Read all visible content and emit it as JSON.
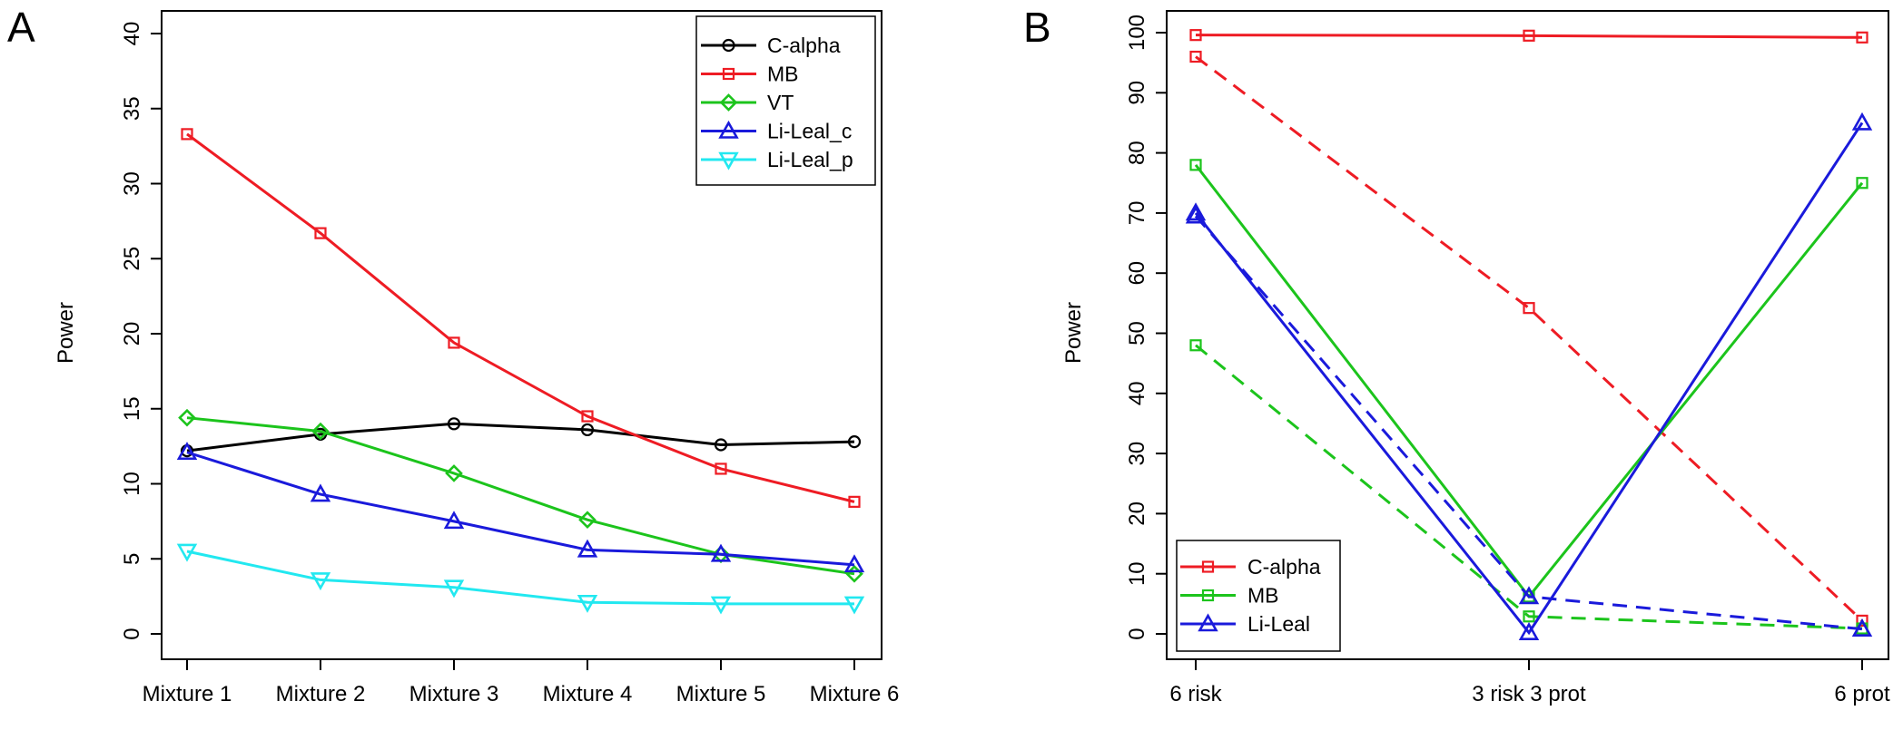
{
  "chart_data": [
    {
      "panel": "A",
      "type": "line",
      "xlabel": "",
      "ylabel": "Power",
      "ylim": [
        0,
        40
      ],
      "yticks": [
        0,
        5,
        10,
        15,
        20,
        25,
        30,
        35,
        40
      ],
      "categories": [
        "Mixture 1",
        "Mixture 2",
        "Mixture 3",
        "Mixture 4",
        "Mixture 5",
        "Mixture 6"
      ],
      "legend_position": "top-right",
      "series": [
        {
          "name": "C-alpha",
          "color": "#000000",
          "marker": "circle",
          "dash": "solid",
          "values": [
            12.2,
            13.3,
            14.0,
            13.6,
            12.6,
            12.8
          ]
        },
        {
          "name": "MB",
          "color": "#ee1c24",
          "marker": "square",
          "dash": "solid",
          "values": [
            33.3,
            26.7,
            19.4,
            14.5,
            11.0,
            8.8
          ]
        },
        {
          "name": "VT",
          "color": "#1cc41c",
          "marker": "diamond",
          "dash": "solid",
          "values": [
            14.4,
            13.5,
            10.7,
            7.6,
            5.3,
            4.0
          ]
        },
        {
          "name": "Li-Leal_c",
          "color": "#1a1adb",
          "marker": "triangle-up",
          "dash": "solid",
          "values": [
            12.1,
            9.3,
            7.5,
            5.6,
            5.3,
            4.6
          ]
        },
        {
          "name": "Li-Leal_p",
          "color": "#22e8f0",
          "marker": "triangle-down",
          "dash": "solid",
          "values": [
            5.5,
            3.6,
            3.1,
            2.1,
            2.0,
            2.0
          ]
        }
      ]
    },
    {
      "panel": "B",
      "type": "line",
      "xlabel": "",
      "ylabel": "Power",
      "ylim": [
        0,
        100
      ],
      "yticks": [
        0,
        10,
        20,
        30,
        40,
        50,
        60,
        70,
        80,
        90,
        100
      ],
      "categories": [
        "6 risk",
        "3 risk 3 prot",
        "6 prot"
      ],
      "legend_position": "bottom-left",
      "legend": [
        {
          "name": "C-alpha",
          "color": "#ee1c24",
          "marker": "square"
        },
        {
          "name": "MB",
          "color": "#1cc41c",
          "marker": "square"
        },
        {
          "name": "Li-Leal",
          "color": "#1a1adb",
          "marker": "triangle-up"
        }
      ],
      "series": [
        {
          "color": "#ee1c24",
          "marker": "square",
          "dash": "solid",
          "values": [
            99.6,
            99.5,
            99.2
          ]
        },
        {
          "color": "#ee1c24",
          "marker": "square",
          "dash": "dashed",
          "values": [
            96.0,
            54.2,
            2.2
          ]
        },
        {
          "color": "#1cc41c",
          "marker": "square",
          "dash": "solid",
          "values": [
            78.0,
            6.2,
            75.0
          ]
        },
        {
          "color": "#1cc41c",
          "marker": "square",
          "dash": "dashed",
          "values": [
            48.0,
            2.9,
            0.9
          ]
        },
        {
          "color": "#1a1adb",
          "marker": "triangle-up",
          "dash": "solid",
          "values": [
            70.0,
            0.2,
            85.0
          ]
        },
        {
          "color": "#1a1adb",
          "marker": "triangle-up",
          "dash": "dashed",
          "values": [
            69.5,
            6.2,
            0.8
          ]
        }
      ]
    }
  ]
}
